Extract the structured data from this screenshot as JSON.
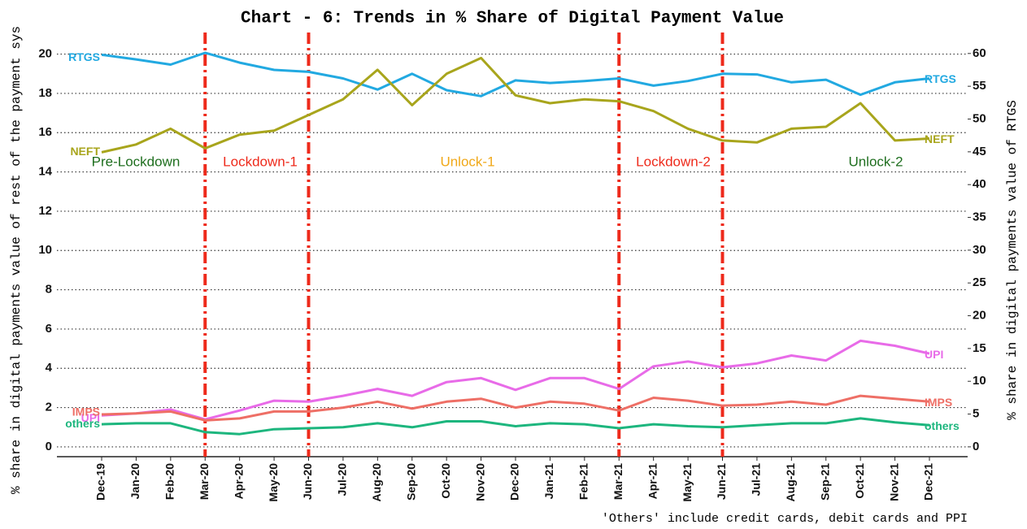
{
  "chart_data": {
    "type": "line",
    "title": "Chart - 6: Trends in % Share of Digital Payment Value",
    "y_label": "% share in digital payments value of rest of the payment sys",
    "y2_label": "% share in digital payments value of RTGS",
    "note": "'Others' include credit cards, debit cards and PPI",
    "categories": [
      "Dec-19",
      "Jan-20",
      "Feb-20",
      "Mar-20",
      "Apr-20",
      "May-20",
      "Jun-20",
      "Jul-20",
      "Aug-20",
      "Sep-20",
      "Oct-20",
      "Nov-20",
      "Dec-20",
      "Jan-21",
      "Feb-21",
      "Mar-21",
      "Apr-21",
      "May-21",
      "Jun-21",
      "Jul-21",
      "Aug-21",
      "Sep-21",
      "Oct-21",
      "Nov-21",
      "Dec-21"
    ],
    "ylim": [
      -0.5,
      21.1
    ],
    "yticks": [
      0,
      2,
      4,
      6,
      8,
      10,
      12,
      14,
      16,
      18,
      20
    ],
    "y2lim": [
      -1.5,
      63.2
    ],
    "y2ticks": [
      0,
      5,
      10,
      15,
      20,
      25,
      30,
      35,
      40,
      45,
      50,
      55,
      60
    ],
    "grid": true,
    "phase_lines": [
      "Mar-20",
      "Jun-20",
      "Mar-21",
      "Jun-21"
    ],
    "phase_line_color": "#ee2a1b",
    "phases": [
      {
        "text": "Pre-Lockdown",
        "color": "#1e6e1e"
      },
      {
        "text": "Lockdown-1",
        "color": "#ee2a1b"
      },
      {
        "text": "Unlock-1",
        "color": "#f0a818"
      },
      {
        "text": "Lockdown-2",
        "color": "#ee2a1b"
      },
      {
        "text": "Unlock-2",
        "color": "#1e6e1e"
      }
    ],
    "series": [
      {
        "name": "RTGS",
        "color": "#22a9e1",
        "axis": "y2",
        "values": [
          59.8,
          59.1,
          58.3,
          60.1,
          58.6,
          57.5,
          57.2,
          56.2,
          54.5,
          56.9,
          54.4,
          53.5,
          55.9,
          55.5,
          55.8,
          56.2,
          55.1,
          55.8,
          56.9,
          56.8,
          55.6,
          56.0,
          53.7,
          55.6,
          56.2
        ]
      },
      {
        "name": "NEFT",
        "color": "#a8a51c",
        "values": [
          15.0,
          15.4,
          16.2,
          15.2,
          15.9,
          16.1,
          16.9,
          17.7,
          19.2,
          17.4,
          19.0,
          19.8,
          17.9,
          17.5,
          17.7,
          17.6,
          17.1,
          16.2,
          15.6,
          15.5,
          16.2,
          16.3,
          17.5,
          15.6,
          15.7
        ]
      },
      {
        "name": "UPI",
        "color": "#e86be8",
        "values": [
          1.6,
          1.7,
          1.9,
          1.4,
          1.85,
          2.35,
          2.3,
          2.6,
          2.95,
          2.6,
          3.3,
          3.5,
          2.9,
          3.5,
          3.5,
          2.95,
          4.1,
          4.35,
          4.05,
          4.25,
          4.65,
          4.4,
          5.4,
          5.15,
          4.75
        ]
      },
      {
        "name": "IMPS",
        "color": "#ee6f66",
        "values": [
          1.65,
          1.7,
          1.8,
          1.35,
          1.45,
          1.8,
          1.8,
          2.0,
          2.3,
          1.95,
          2.3,
          2.45,
          2.0,
          2.3,
          2.2,
          1.85,
          2.5,
          2.35,
          2.1,
          2.15,
          2.3,
          2.15,
          2.6,
          2.45,
          2.3
        ]
      },
      {
        "name": "others",
        "color": "#1db67e",
        "values": [
          1.15,
          1.2,
          1.2,
          0.75,
          0.65,
          0.9,
          0.95,
          1.0,
          1.2,
          1.0,
          1.3,
          1.3,
          1.05,
          1.2,
          1.15,
          0.95,
          1.15,
          1.05,
          1.0,
          1.1,
          1.2,
          1.2,
          1.45,
          1.25,
          1.1
        ]
      }
    ]
  }
}
